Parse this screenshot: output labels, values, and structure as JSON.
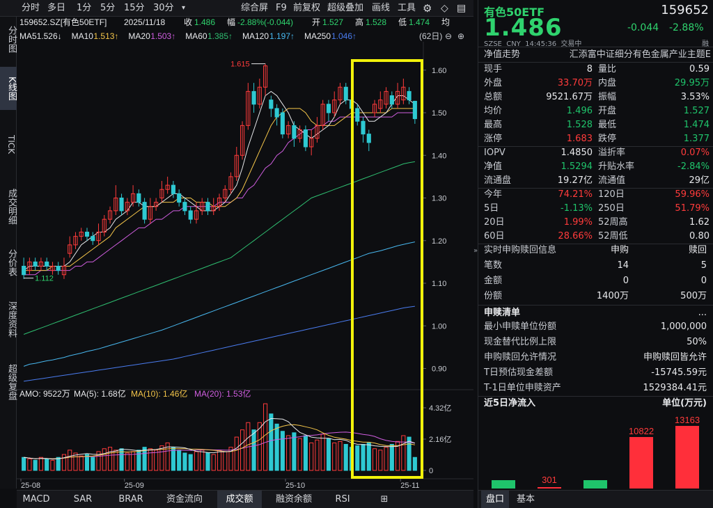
{
  "toolbar": {
    "periods": [
      "分时",
      "多日",
      "1分",
      "5分",
      "15分",
      "30分"
    ],
    "more": "▾",
    "right": [
      "综合屏",
      "F9",
      "前复权",
      "超级叠加",
      "画线",
      "工具"
    ],
    "gear": "⚙",
    "bell": "◇"
  },
  "left_tabs": [
    "分时图",
    "K线图",
    "TICK",
    "成交明细",
    "分价表",
    "深度资料",
    "超级复盘"
  ],
  "info_line": {
    "code": "159652.SZ[有色50ETF]",
    "date": "2025/11/18",
    "close_label": "收",
    "close": "1.486",
    "chg_label": "幅",
    "chg": "-2.88%(-0.044)",
    "open_label": "开",
    "open": "1.527",
    "high_label": "高",
    "high": "1.528",
    "low_label": "低",
    "low": "1.474",
    "avg_label": "均"
  },
  "ma_line": [
    {
      "text": "MA5",
      "value": "1.526↓",
      "color": "#e8e9ec"
    },
    {
      "text": "MA10",
      "value": "1.513↑",
      "color": "#f5c64a"
    },
    {
      "text": "MA20",
      "value": "1.503↑",
      "color": "#d05ee0"
    },
    {
      "text": "MA60",
      "value": "1.385↑",
      "color": "#2fbf71"
    },
    {
      "text": "MA120",
      "value": "1.197↑",
      "color": "#48b8f0"
    },
    {
      "text": "MA250",
      "value": "1.046↑",
      "color": "#4a7cf0"
    }
  ],
  "period_badge": "(62日)",
  "price_axis": [
    "1.60",
    "1.50",
    "1.40",
    "1.30",
    "1.20",
    "1.10",
    "1.00",
    "0.90"
  ],
  "price_max_label": "1.615",
  "price_min_label": "1.112",
  "vol_line": {
    "amo": "AMO: 9522万",
    "ma5": "MA(5): 1.68亿",
    "ma10": "MA(10): 1.46亿",
    "ma20": "MA(20): 1.53亿"
  },
  "vol_axis": [
    "4.32亿",
    "2.16亿",
    "0"
  ],
  "date_axis": [
    "25-08",
    "25-09",
    "25-10",
    "25-11"
  ],
  "bottom_tabs": [
    "MACD",
    "SAR",
    "BRAR",
    "资金流向",
    "成交额",
    "融资余额",
    "RSI"
  ],
  "chart_data": {
    "type": "candlestick",
    "ylim": [
      0.86,
      1.66
    ],
    "candles": [
      [
        1.14,
        1.12,
        1.16,
        1.11
      ],
      [
        1.13,
        1.15,
        1.16,
        1.12
      ],
      [
        1.15,
        1.14,
        1.16,
        1.13
      ],
      [
        1.14,
        1.15,
        1.16,
        1.13
      ],
      [
        1.15,
        1.14,
        1.16,
        1.13
      ],
      [
        1.13,
        1.14,
        1.15,
        1.12
      ],
      [
        1.14,
        1.13,
        1.15,
        1.12
      ],
      [
        1.12,
        1.14,
        1.16,
        1.11
      ],
      [
        1.17,
        1.19,
        1.21,
        1.16
      ],
      [
        1.19,
        1.21,
        1.22,
        1.18
      ],
      [
        1.21,
        1.22,
        1.23,
        1.2
      ],
      [
        1.22,
        1.21,
        1.23,
        1.2
      ],
      [
        1.21,
        1.2,
        1.22,
        1.19
      ],
      [
        1.2,
        1.22,
        1.24,
        1.19
      ],
      [
        1.22,
        1.25,
        1.26,
        1.21
      ],
      [
        1.25,
        1.27,
        1.28,
        1.24
      ],
      [
        1.27,
        1.3,
        1.33,
        1.26
      ],
      [
        1.3,
        1.27,
        1.31,
        1.26
      ],
      [
        1.27,
        1.29,
        1.3,
        1.26
      ],
      [
        1.29,
        1.31,
        1.33,
        1.28
      ],
      [
        1.31,
        1.29,
        1.32,
        1.28
      ],
      [
        1.29,
        1.25,
        1.3,
        1.24
      ],
      [
        1.25,
        1.28,
        1.3,
        1.24
      ],
      [
        1.28,
        1.29,
        1.3,
        1.27
      ],
      [
        1.3,
        1.32,
        1.34,
        1.29
      ],
      [
        1.32,
        1.33,
        1.35,
        1.31
      ],
      [
        1.33,
        1.31,
        1.34,
        1.3
      ],
      [
        1.31,
        1.29,
        1.32,
        1.28
      ],
      [
        1.29,
        1.27,
        1.3,
        1.26
      ],
      [
        1.27,
        1.25,
        1.28,
        1.24
      ],
      [
        1.25,
        1.27,
        1.29,
        1.24
      ],
      [
        1.27,
        1.29,
        1.3,
        1.26
      ],
      [
        1.29,
        1.27,
        1.3,
        1.26
      ],
      [
        1.27,
        1.28,
        1.3,
        1.26
      ],
      [
        1.28,
        1.3,
        1.31,
        1.27
      ],
      [
        1.3,
        1.32,
        1.33,
        1.29
      ],
      [
        1.32,
        1.35,
        1.36,
        1.31
      ],
      [
        1.35,
        1.4,
        1.42,
        1.34
      ],
      [
        1.4,
        1.47,
        1.48,
        1.39
      ],
      [
        1.47,
        1.55,
        1.57,
        1.46
      ],
      [
        1.55,
        1.52,
        1.57,
        1.5
      ],
      [
        1.52,
        1.56,
        1.58,
        1.51
      ],
      [
        1.56,
        1.61,
        1.615,
        1.54
      ],
      [
        1.53,
        1.51,
        1.54,
        1.49
      ],
      [
        1.51,
        1.49,
        1.52,
        1.47
      ],
      [
        1.5,
        1.45,
        1.51,
        1.44
      ],
      [
        1.45,
        1.47,
        1.48,
        1.44
      ],
      [
        1.47,
        1.44,
        1.48,
        1.42
      ],
      [
        1.44,
        1.46,
        1.47,
        1.43
      ],
      [
        1.46,
        1.42,
        1.47,
        1.41
      ],
      [
        1.42,
        1.44,
        1.46,
        1.4
      ],
      [
        1.44,
        1.47,
        1.49,
        1.43
      ],
      [
        1.47,
        1.52,
        1.53,
        1.46
      ],
      [
        1.52,
        1.5,
        1.53,
        1.48
      ],
      [
        1.5,
        1.53,
        1.55,
        1.49
      ],
      [
        1.53,
        1.56,
        1.57,
        1.52
      ],
      [
        1.56,
        1.53,
        1.57,
        1.52
      ],
      [
        1.53,
        1.51,
        1.54,
        1.5
      ],
      [
        1.51,
        1.48,
        1.52,
        1.47
      ],
      [
        1.48,
        1.45,
        1.49,
        1.43
      ],
      [
        1.45,
        1.43,
        1.46,
        1.41
      ],
      [
        1.5,
        1.52,
        1.53,
        1.49
      ],
      [
        1.51,
        1.53,
        1.55,
        1.5
      ],
      [
        1.52,
        1.55,
        1.56,
        1.51
      ],
      [
        1.54,
        1.52,
        1.55,
        1.51
      ],
      [
        1.52,
        1.55,
        1.57,
        1.51
      ],
      [
        1.53,
        1.56,
        1.58,
        1.52
      ],
      [
        1.55,
        1.53,
        1.56,
        1.52
      ],
      [
        1.527,
        1.486,
        1.528,
        1.474
      ]
    ],
    "volume_yi": [
      0.9,
      0.8,
      0.7,
      0.9,
      0.8,
      0.7,
      0.9,
      1.1,
      1.4,
      1.2,
      1.0,
      1.1,
      0.9,
      1.3,
      1.5,
      1.6,
      1.4,
      1.5,
      1.2,
      1.3,
      1.4,
      1.6,
      1.5,
      1.4,
      1.7,
      1.9,
      1.6,
      1.4,
      1.2,
      1.1,
      1.3,
      1.4,
      1.2,
      1.1,
      1.4,
      1.3,
      1.6,
      2.3,
      2.8,
      3.3,
      2.8,
      3.3,
      4.6,
      3.9,
      3.2,
      2.7,
      2.4,
      2.6,
      2.2,
      2.4,
      1.9,
      2.1,
      2.5,
      2.2,
      1.9,
      2.0,
      1.8,
      1.6,
      1.7,
      1.8,
      1.9,
      1.5,
      1.4,
      1.6,
      1.8,
      2.0,
      2.4,
      2.3,
      0.9
    ],
    "ma5": [
      1.13,
      1.14,
      1.14,
      1.14,
      1.14,
      1.14,
      1.14,
      1.14,
      1.15,
      1.17,
      1.19,
      1.2,
      1.21,
      1.22,
      1.22,
      1.23,
      1.25,
      1.26,
      1.27,
      1.29,
      1.29,
      1.28,
      1.28,
      1.28,
      1.29,
      1.3,
      1.31,
      1.31,
      1.3,
      1.29,
      1.28,
      1.27,
      1.27,
      1.27,
      1.28,
      1.29,
      1.31,
      1.33,
      1.37,
      1.42,
      1.46,
      1.5,
      1.54,
      1.55,
      1.54,
      1.52,
      1.5,
      1.47,
      1.46,
      1.45,
      1.44,
      1.45,
      1.46,
      1.47,
      1.49,
      1.52,
      1.53,
      1.53,
      1.52,
      1.5,
      1.48,
      1.48,
      1.49,
      1.5,
      1.52,
      1.54,
      1.54,
      1.53,
      1.52
    ],
    "ma10": [
      1.13,
      1.13,
      1.13,
      1.13,
      1.13,
      1.14,
      1.14,
      1.14,
      1.14,
      1.15,
      1.16,
      1.17,
      1.18,
      1.19,
      1.2,
      1.21,
      1.23,
      1.24,
      1.25,
      1.26,
      1.27,
      1.28,
      1.28,
      1.28,
      1.29,
      1.29,
      1.29,
      1.3,
      1.3,
      1.3,
      1.29,
      1.29,
      1.29,
      1.28,
      1.28,
      1.28,
      1.29,
      1.3,
      1.32,
      1.35,
      1.38,
      1.41,
      1.44,
      1.47,
      1.49,
      1.5,
      1.51,
      1.51,
      1.51,
      1.5,
      1.48,
      1.47,
      1.47,
      1.47,
      1.47,
      1.48,
      1.49,
      1.5,
      1.5,
      1.5,
      1.5,
      1.5,
      1.5,
      1.5,
      1.51,
      1.51,
      1.51,
      1.51,
      1.51
    ],
    "ma20": [
      1.12,
      1.12,
      1.12,
      1.13,
      1.13,
      1.13,
      1.13,
      1.13,
      1.13,
      1.14,
      1.14,
      1.15,
      1.15,
      1.16,
      1.17,
      1.18,
      1.19,
      1.2,
      1.21,
      1.22,
      1.23,
      1.23,
      1.24,
      1.25,
      1.25,
      1.26,
      1.27,
      1.27,
      1.28,
      1.28,
      1.28,
      1.28,
      1.28,
      1.28,
      1.29,
      1.29,
      1.29,
      1.3,
      1.3,
      1.32,
      1.33,
      1.35,
      1.37,
      1.38,
      1.4,
      1.41,
      1.43,
      1.44,
      1.45,
      1.46,
      1.46,
      1.47,
      1.47,
      1.48,
      1.48,
      1.49,
      1.49,
      1.49,
      1.49,
      1.49,
      1.49,
      1.49,
      1.49,
      1.49,
      1.49,
      1.5,
      1.5,
      1.5,
      1.5
    ],
    "ma60": [
      0.98,
      0.985,
      0.99,
      0.995,
      1.0,
      1.005,
      1.01,
      1.015,
      1.02,
      1.025,
      1.03,
      1.035,
      1.04,
      1.045,
      1.05,
      1.055,
      1.06,
      1.065,
      1.07,
      1.075,
      1.08,
      1.085,
      1.09,
      1.095,
      1.1,
      1.105,
      1.11,
      1.115,
      1.12,
      1.125,
      1.13,
      1.135,
      1.14,
      1.145,
      1.15,
      1.155,
      1.16,
      1.17,
      1.18,
      1.19,
      1.2,
      1.21,
      1.22,
      1.23,
      1.24,
      1.25,
      1.26,
      1.27,
      1.28,
      1.29,
      1.3,
      1.305,
      1.31,
      1.315,
      1.32,
      1.325,
      1.33,
      1.335,
      1.34,
      1.345,
      1.35,
      1.355,
      1.36,
      1.365,
      1.37,
      1.375,
      1.38,
      1.383,
      1.385
    ],
    "ma120": [
      0.905,
      0.91,
      0.912,
      0.915,
      0.918,
      0.92,
      0.923,
      0.926,
      0.93,
      0.933,
      0.936,
      0.94,
      0.943,
      0.946,
      0.95,
      0.954,
      0.958,
      0.962,
      0.966,
      0.97,
      0.974,
      0.978,
      0.982,
      0.986,
      0.99,
      0.995,
      1.0,
      1.005,
      1.01,
      1.015,
      1.02,
      1.025,
      1.03,
      1.035,
      1.04,
      1.045,
      1.05,
      1.055,
      1.06,
      1.065,
      1.07,
      1.075,
      1.08,
      1.085,
      1.09,
      1.095,
      1.1,
      1.105,
      1.11,
      1.115,
      1.12,
      1.125,
      1.13,
      1.135,
      1.14,
      1.145,
      1.15,
      1.155,
      1.16,
      1.165,
      1.17,
      1.173,
      1.176,
      1.18,
      1.184,
      1.188,
      1.191,
      1.194,
      1.197
    ],
    "ma250": [
      0.87,
      0.872,
      0.874,
      0.876,
      0.878,
      0.88,
      0.882,
      0.884,
      0.886,
      0.888,
      0.89,
      0.892,
      0.894,
      0.896,
      0.898,
      0.9,
      0.902,
      0.904,
      0.906,
      0.908,
      0.91,
      0.912,
      0.914,
      0.916,
      0.918,
      0.92,
      0.922,
      0.925,
      0.928,
      0.931,
      0.934,
      0.937,
      0.94,
      0.943,
      0.946,
      0.949,
      0.952,
      0.955,
      0.958,
      0.961,
      0.964,
      0.967,
      0.97,
      0.973,
      0.976,
      0.979,
      0.982,
      0.985,
      0.988,
      0.991,
      0.994,
      0.997,
      1.0,
      1.003,
      1.006,
      1.009,
      1.012,
      1.015,
      1.018,
      1.021,
      1.024,
      1.027,
      1.03,
      1.033,
      1.036,
      1.039,
      1.042,
      1.044,
      1.046
    ]
  },
  "quote": {
    "name": "有色50ETF",
    "code": "159652",
    "price": "1.486",
    "change": "-0.044",
    "pct": "-2.88%",
    "meta": "SZSE  CNY  14:45:36  交易中",
    "rong": "融"
  },
  "trend": {
    "label": "净值走势",
    "index": "汇添富中证细分有色金属产业主题E"
  },
  "stats": [
    [
      [
        "现手",
        "8",
        "white"
      ],
      [
        "量比",
        "0.59",
        "white"
      ]
    ],
    [
      [
        "外盘",
        "33.70万",
        "red"
      ],
      [
        "内盘",
        "29.95万",
        "green"
      ]
    ],
    [
      [
        "总额",
        "9521.67万",
        "white"
      ],
      [
        "振幅",
        "3.53%",
        "white"
      ]
    ],
    [
      [
        "均价",
        "1.496",
        "green"
      ],
      [
        "开盘",
        "1.527",
        "green"
      ]
    ],
    [
      [
        "最高",
        "1.528",
        "green"
      ],
      [
        "最低",
        "1.474",
        "green"
      ]
    ],
    [
      [
        "涨停",
        "1.683",
        "red"
      ],
      [
        "跌停",
        "1.377",
        "green"
      ]
    ],
    [
      [
        "IOPV",
        "1.4850",
        "white"
      ],
      [
        "溢折率",
        "0.07%",
        "red"
      ]
    ],
    [
      [
        "净值",
        "1.5294",
        "green"
      ],
      [
        "升贴水率",
        "-2.84%",
        "green"
      ]
    ],
    [
      [
        "流通盘",
        "19.27亿",
        "white"
      ],
      [
        "流通值",
        "29亿",
        "white"
      ]
    ],
    [
      [
        "今年",
        "74.21%",
        "red"
      ],
      [
        "120日",
        "59.96%",
        "red"
      ]
    ],
    [
      [
        "5日",
        "-1.13%",
        "green"
      ],
      [
        "250日",
        "51.79%",
        "red"
      ]
    ],
    [
      [
        "20日",
        "1.99%",
        "red"
      ],
      [
        "52周高",
        "1.62",
        "white"
      ]
    ],
    [
      [
        "60日",
        "28.66%",
        "red"
      ],
      [
        "52周低",
        "0.80",
        "white"
      ]
    ]
  ],
  "redeem": {
    "title": "实时申购赎回信息",
    "col1": "申购",
    "col2": "赎回",
    "rows": [
      [
        "笔数",
        "14",
        "5"
      ],
      [
        "金额",
        "0",
        "0"
      ],
      [
        "份额",
        "1400万",
        "500万"
      ]
    ]
  },
  "list": {
    "title": "申赎清单",
    "more": "...",
    "rows": [
      [
        "最小申赎单位份额",
        "1,000,000"
      ],
      [
        "现金替代比例上限",
        "50%"
      ],
      [
        "申购赎回允许情况",
        "申购赎回皆允许"
      ],
      [
        "T日预估现金差额",
        "-15745.59元"
      ],
      [
        "T-1日单位申赎资产",
        "1529384.41元"
      ]
    ]
  },
  "flow": {
    "title": "近5日净流入",
    "unit": "单位(万元)",
    "values": [
      -150,
      301,
      -150,
      10822,
      13163
    ],
    "labels": [
      "",
      "301",
      "",
      "10822",
      "13163"
    ]
  },
  "right_tabs": [
    "盘口",
    "基本"
  ],
  "side_arrow": "»",
  "colors": {
    "up": "#ff3b3b",
    "down": "#2ec9d2",
    "upbar": "#ff3b3b",
    "green": "#1fc46b",
    "highlight": "#f2f20a"
  }
}
